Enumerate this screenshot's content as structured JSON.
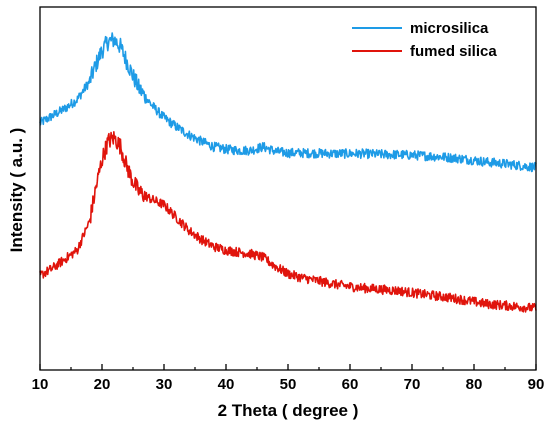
{
  "chart_data": {
    "type": "line",
    "xlabel": "2 Theta ( degree )",
    "ylabel": "Intensity ( a.u. )",
    "xlim": [
      10,
      90
    ],
    "ylim": [
      0,
      100
    ],
    "y_ticks_shown": false,
    "x_ticks": [
      "10",
      "20",
      "30",
      "40",
      "50",
      "60",
      "70",
      "80",
      "90"
    ],
    "grid": false,
    "legend_position": "top-right",
    "series": [
      {
        "name": "microsilica",
        "color": "#1e9be6",
        "x": [
          10,
          12,
          14,
          16,
          18,
          19,
          20,
          21,
          22,
          23,
          24,
          25,
          26,
          28,
          30,
          32,
          34,
          36,
          38,
          40,
          42,
          44,
          46,
          48,
          50,
          52,
          55,
          58,
          60,
          62,
          65,
          68,
          70,
          72,
          75,
          78,
          80,
          82,
          85,
          88,
          90
        ],
        "y": [
          68,
          70,
          72,
          74.5,
          79.5,
          84,
          88,
          90.5,
          91,
          89,
          85,
          81,
          77.5,
          73,
          69.5,
          67,
          64.8,
          63,
          61.5,
          60.8,
          60.5,
          60.5,
          61.5,
          60.2,
          59.8,
          59.8,
          59.7,
          59.6,
          59.6,
          59.6,
          59.4,
          59.3,
          59.2,
          59,
          58.7,
          58.2,
          57.8,
          57.3,
          56.8,
          56.2,
          55.8
        ]
      },
      {
        "name": "fumed silica",
        "color": "#e0140c",
        "x": [
          10,
          12,
          14,
          16,
          18,
          19,
          20,
          21,
          22,
          23,
          24,
          25,
          26,
          28,
          30,
          32,
          34,
          36,
          38,
          40,
          42,
          44,
          46,
          48,
          50,
          52,
          55,
          58,
          60,
          62,
          65,
          68,
          70,
          72,
          75,
          78,
          80,
          82,
          85,
          88,
          90
        ],
        "y": [
          26,
          28,
          30.5,
          33,
          41,
          50,
          58,
          63,
          64,
          61.5,
          56,
          52,
          49,
          47,
          45.5,
          42,
          38.5,
          36,
          34,
          33,
          32.5,
          32,
          31,
          28.5,
          26.5,
          25.5,
          24.5,
          23.5,
          23,
          22.6,
          22.2,
          21.8,
          21.3,
          20.8,
          20.2,
          19.4,
          18.8,
          18.2,
          17.8,
          17.3,
          17
        ]
      }
    ]
  }
}
